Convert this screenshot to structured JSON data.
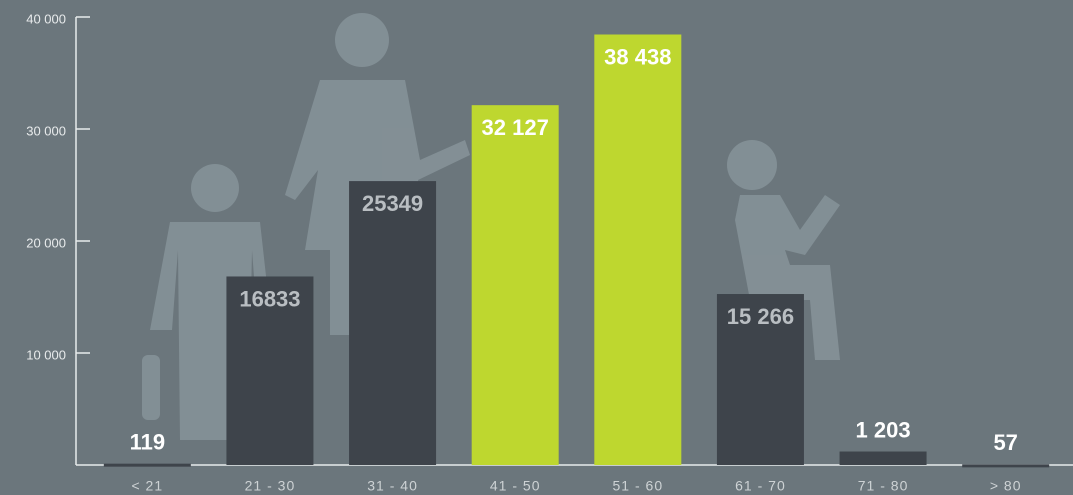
{
  "chart_data": {
    "type": "bar",
    "categories": [
      "< 21",
      "21 - 30",
      "31 - 40",
      "41 - 50",
      "51 - 60",
      "61 - 70",
      "71 - 80",
      "> 80"
    ],
    "values": [
      119,
      16833,
      25349,
      32127,
      38438,
      15266,
      1203,
      57
    ],
    "value_labels": [
      "119",
      "16833",
      "25349",
      "32 127",
      "38 438",
      "15 266",
      "1 203",
      "57"
    ],
    "colors": [
      "#3e444b",
      "#3e444b",
      "#3e444b",
      "#bed72f",
      "#bed72f",
      "#3e444b",
      "#3e444b",
      "#3e444b"
    ],
    "ylim": [
      0,
      40000
    ],
    "yticks": [
      {
        "value": 10000,
        "label": "10 000"
      },
      {
        "value": 20000,
        "label": "20 000"
      },
      {
        "value": 30000,
        "label": "30 000"
      },
      {
        "value": 40000,
        "label": "40 000"
      }
    ]
  }
}
